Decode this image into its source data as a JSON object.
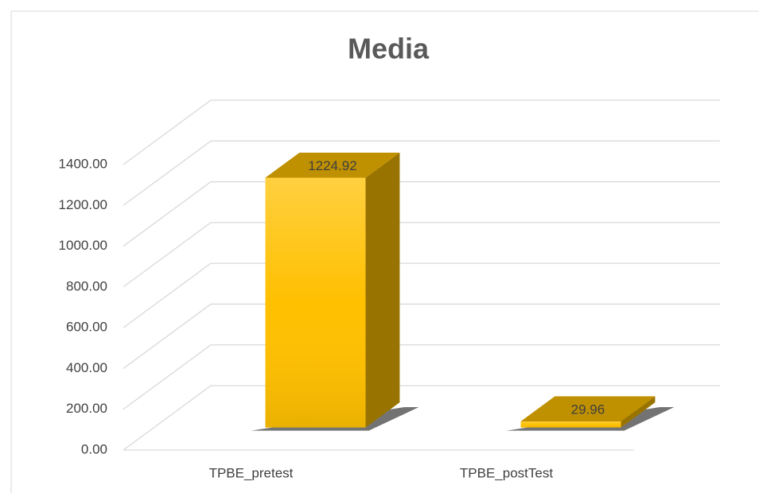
{
  "chart_data": {
    "type": "bar3d",
    "title": "Media",
    "categories": [
      "TPBE_pretest",
      "TPBE_postTest"
    ],
    "values": [
      1224.92,
      29.96
    ],
    "color": "#ffc000",
    "ylim": [
      0,
      1400
    ],
    "yticks": [
      {
        "value": 0,
        "label": "0.00"
      },
      {
        "value": 200,
        "label": "200.00"
      },
      {
        "value": 400,
        "label": "400.00"
      },
      {
        "value": 600,
        "label": "600.00"
      },
      {
        "value": 800,
        "label": "800.00"
      },
      {
        "value": 1000,
        "label": "1000.00"
      },
      {
        "value": 1200,
        "label": "1200.00"
      },
      {
        "value": 1400,
        "label": "1400.00"
      }
    ],
    "grid": true
  }
}
